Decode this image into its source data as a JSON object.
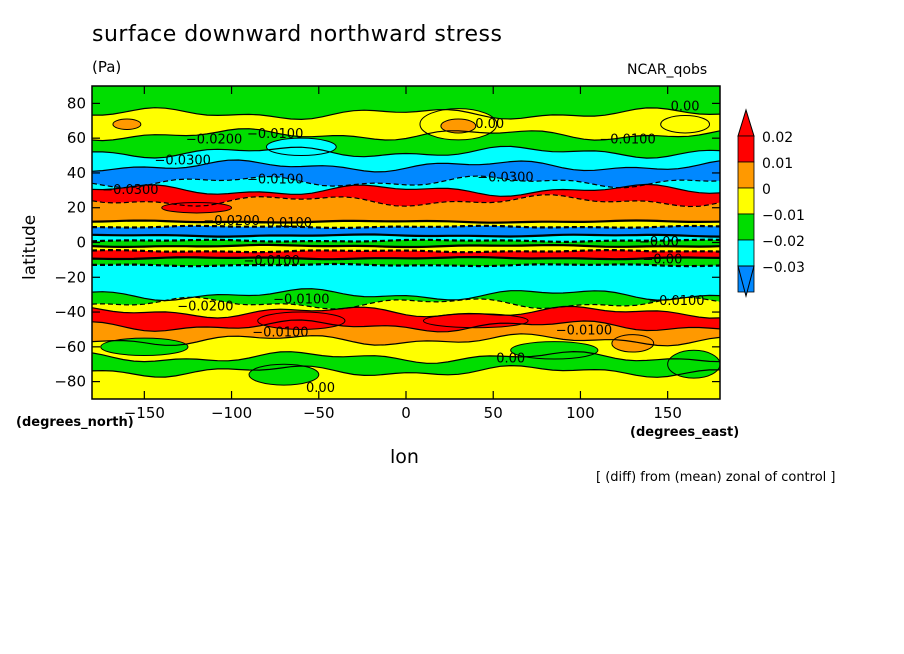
{
  "chart_data": {
    "type": "heatmap",
    "title": "surface downward northward stress",
    "units": "(Pa)",
    "model": "NCAR_qobs",
    "xlabel": "lon",
    "ylabel": "latitude",
    "x_unit_label": "(degrees_east)",
    "y_unit_label": "(degrees_north)",
    "note": "[ (diff) from (mean) zonal of control ]",
    "xlim": [
      -180,
      180
    ],
    "ylim": [
      -90,
      90
    ],
    "x_ticks": [
      {
        "value": -150,
        "label": "−150"
      },
      {
        "value": -100,
        "label": "−100"
      },
      {
        "value": -50,
        "label": "−50"
      },
      {
        "value": 0,
        "label": "0"
      },
      {
        "value": 50,
        "label": "50"
      },
      {
        "value": 100,
        "label": "100"
      },
      {
        "value": 150,
        "label": "150"
      }
    ],
    "y_ticks": [
      {
        "value": 80,
        "label": "80"
      },
      {
        "value": 60,
        "label": "60"
      },
      {
        "value": 40,
        "label": "40"
      },
      {
        "value": 20,
        "label": "20"
      },
      {
        "value": 0,
        "label": "0"
      },
      {
        "value": -20,
        "label": "−20"
      },
      {
        "value": -40,
        "label": "−40"
      },
      {
        "value": -60,
        "label": "−60"
      },
      {
        "value": -80,
        "label": "−80"
      }
    ],
    "colorbar": {
      "levels": [
        "0.02",
        "0.01",
        "0",
        "−0.01",
        "−0.02",
        "−0.03"
      ],
      "colors": [
        "#ff0000",
        "#ff9900",
        "#ffff00",
        "#00dd00",
        "#00ffff",
        "#0088ff"
      ],
      "over_color": "#ff0000",
      "under_color": "#0088ff"
    },
    "bands": [
      {
        "lat_min": 74,
        "lat_max": 90,
        "color": "#00dd00"
      },
      {
        "lat_min": 62,
        "lat_max": 74,
        "color": "#ffff00"
      },
      {
        "lat_min": 52,
        "lat_max": 62,
        "color": "#00dd00"
      },
      {
        "lat_min": 44,
        "lat_max": 52,
        "color": "#00ffff"
      },
      {
        "lat_min": 35,
        "lat_max": 44,
        "color": "#0088ff"
      },
      {
        "lat_min": 30,
        "lat_max": 35,
        "color": "#00ffff"
      },
      {
        "lat_min": 24,
        "lat_max": 30,
        "color": "#ff0000"
      },
      {
        "lat_min": 12,
        "lat_max": 24,
        "color": "#ff9900"
      },
      {
        "lat_min": 9,
        "lat_max": 12,
        "color": "#ffff00"
      },
      {
        "lat_min": 4,
        "lat_max": 9,
        "color": "#0088ff"
      },
      {
        "lat_min": 1,
        "lat_max": 4,
        "color": "#00ffff"
      },
      {
        "lat_min": -2,
        "lat_max": 1,
        "color": "#00dd00"
      },
      {
        "lat_min": -5,
        "lat_max": -2,
        "color": "#ffff00"
      },
      {
        "lat_min": -9,
        "lat_max": -5,
        "color": "#ff0000"
      },
      {
        "lat_min": -13,
        "lat_max": -9,
        "color": "#00dd00"
      },
      {
        "lat_min": -30,
        "lat_max": -13,
        "color": "#00ffff"
      },
      {
        "lat_min": -35,
        "lat_max": -30,
        "color": "#00dd00"
      },
      {
        "lat_min": -40,
        "lat_max": -35,
        "color": "#ffff00"
      },
      {
        "lat_min": -48,
        "lat_max": -40,
        "color": "#ff0000"
      },
      {
        "lat_min": -56,
        "lat_max": -48,
        "color": "#ff9900"
      },
      {
        "lat_min": -66,
        "lat_max": -56,
        "color": "#ffff00"
      },
      {
        "lat_min": -74,
        "lat_max": -66,
        "color": "#00dd00"
      },
      {
        "lat_min": -90,
        "lat_max": -74,
        "color": "#ffff00"
      }
    ],
    "patches": [
      {
        "lon": 30,
        "lat": 68,
        "rlon": 22,
        "rlat": 9,
        "color": "#ffff00"
      },
      {
        "lon": 30,
        "lat": 67,
        "rlon": 10,
        "rlat": 4,
        "color": "#ff9900"
      },
      {
        "lon": -160,
        "lat": 68,
        "rlon": 8,
        "rlat": 3,
        "color": "#ff9900"
      },
      {
        "lon": 160,
        "lat": 68,
        "rlon": 14,
        "rlat": 5,
        "color": "#ffff00"
      },
      {
        "lon": -60,
        "lat": 55,
        "rlon": 20,
        "rlat": 5,
        "color": "#00ffff"
      },
      {
        "lon": -120,
        "lat": 20,
        "rlon": 20,
        "rlat": 3,
        "color": "#ff0000"
      },
      {
        "lon": -60,
        "lat": -45,
        "rlon": 25,
        "rlat": 5,
        "color": "#ff0000"
      },
      {
        "lon": 40,
        "lat": -45,
        "rlon": 30,
        "rlat": 4,
        "color": "#ff0000"
      },
      {
        "lon": 130,
        "lat": -58,
        "rlon": 12,
        "rlat": 5,
        "color": "#ff9900"
      },
      {
        "lon": -150,
        "lat": -60,
        "rlon": 25,
        "rlat": 5,
        "color": "#00dd00"
      },
      {
        "lon": 85,
        "lat": -62,
        "rlon": 25,
        "rlat": 5,
        "color": "#00dd00"
      },
      {
        "lon": -70,
        "lat": -76,
        "rlon": 20,
        "rlat": 6,
        "color": "#00dd00"
      },
      {
        "lon": 165,
        "lat": -70,
        "rlon": 15,
        "rlat": 8,
        "color": "#00dd00"
      }
    ],
    "contour_labels": [
      {
        "text": "0.00",
        "lon": 160,
        "lat": 78
      },
      {
        "text": "0.00",
        "lon": 48,
        "lat": 68
      },
      {
        "text": "−0.0100",
        "lon": -75,
        "lat": 62
      },
      {
        "text": "−0.0200",
        "lon": -110,
        "lat": 59
      },
      {
        "text": "−0.0100",
        "lon": 127,
        "lat": 59
      },
      {
        "text": "−0.0300",
        "lon": -128,
        "lat": 47
      },
      {
        "text": "−0.0300",
        "lon": 57,
        "lat": 37
      },
      {
        "text": "−0.0300",
        "lon": -158,
        "lat": 30
      },
      {
        "text": "−0.0100",
        "lon": -75,
        "lat": 36
      },
      {
        "text": "−0.0200",
        "lon": -100,
        "lat": 12
      },
      {
        "text": "−0.0100",
        "lon": -70,
        "lat": 11
      },
      {
        "text": "−0.00",
        "lon": 145,
        "lat": 0
      },
      {
        "text": "−0.00",
        "lon": 147,
        "lat": -10
      },
      {
        "text": "−0.0100",
        "lon": -77,
        "lat": -11
      },
      {
        "text": "−0.0100",
        "lon": -60,
        "lat": -33
      },
      {
        "text": "−0.0200",
        "lon": -115,
        "lat": -37
      },
      {
        "text": "−0.0100",
        "lon": 155,
        "lat": -34
      },
      {
        "text": "−0.0100",
        "lon": -72,
        "lat": -52
      },
      {
        "text": "−0.0100",
        "lon": 102,
        "lat": -51
      },
      {
        "text": "0.00",
        "lon": 60,
        "lat": -67
      },
      {
        "text": "0.00",
        "lon": -49,
        "lat": -84
      }
    ]
  }
}
